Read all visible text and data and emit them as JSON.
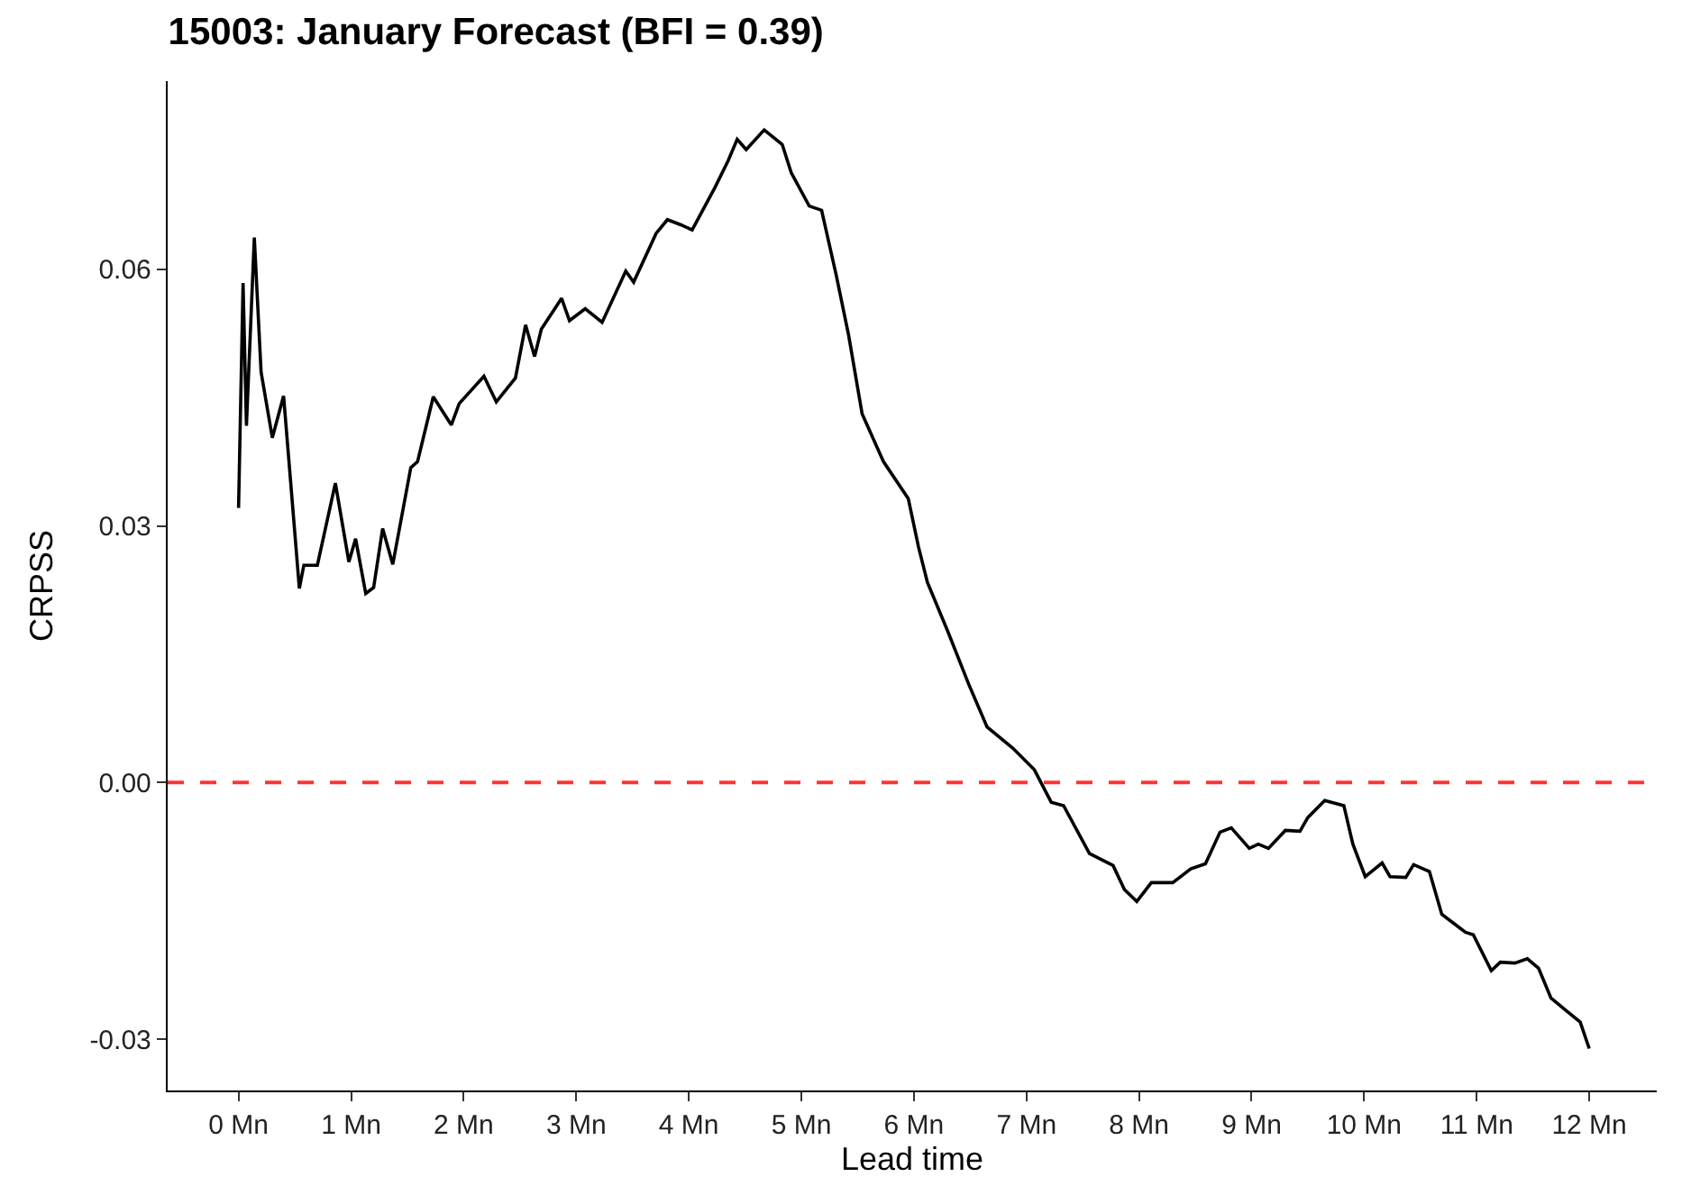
{
  "chart_data": {
    "type": "line",
    "title": "15003: January Forecast (BFI = 0.39)",
    "xlabel": "Lead time",
    "ylabel": "CRPSS",
    "x": [
      0.0,
      0.04,
      0.07,
      0.14,
      0.2,
      0.3,
      0.4,
      0.54,
      0.58,
      0.7,
      0.86,
      0.98,
      1.04,
      1.13,
      1.2,
      1.28,
      1.37,
      1.53,
      1.59,
      1.73,
      1.89,
      1.96,
      2.18,
      2.29,
      2.46,
      2.55,
      2.63,
      2.69,
      2.87,
      2.94,
      3.08,
      3.23,
      3.44,
      3.51,
      3.71,
      3.81,
      3.93,
      4.03,
      4.23,
      4.35,
      4.43,
      4.51,
      4.67,
      4.83,
      4.91,
      5.07,
      5.18,
      5.31,
      5.42,
      5.54,
      5.73,
      5.95,
      6.04,
      6.12,
      6.3,
      6.49,
      6.65,
      6.88,
      7.07,
      7.22,
      7.33,
      7.56,
      7.77,
      7.87,
      7.98,
      8.11,
      8.3,
      8.46,
      8.59,
      8.72,
      8.82,
      8.98,
      9.06,
      9.15,
      9.3,
      9.43,
      9.5,
      9.65,
      9.82,
      9.9,
      10.01,
      10.16,
      10.23,
      10.37,
      10.44,
      10.58,
      10.69,
      10.79,
      10.9,
      10.97,
      11.13,
      11.21,
      11.34,
      11.45,
      11.55,
      11.66,
      11.79,
      11.92,
      12.0
    ],
    "series": [
      {
        "color": "#000000",
        "values": [
          0.0321,
          0.0584,
          0.0417,
          0.0637,
          0.048,
          0.0403,
          0.0452,
          0.0227,
          0.0254,
          0.0254,
          0.035,
          0.0258,
          0.0285,
          0.0221,
          0.0228,
          0.0297,
          0.0255,
          0.0368,
          0.0375,
          0.0451,
          0.0418,
          0.0443,
          0.0475,
          0.0445,
          0.0473,
          0.0535,
          0.0498,
          0.053,
          0.0566,
          0.054,
          0.0554,
          0.0538,
          0.0598,
          0.0585,
          0.0642,
          0.0658,
          0.0652,
          0.0646,
          0.0695,
          0.0727,
          0.0752,
          0.074,
          0.0763,
          0.0746,
          0.0713,
          0.0674,
          0.0669,
          0.0593,
          0.0523,
          0.0431,
          0.0375,
          0.0332,
          0.0276,
          0.0234,
          0.0177,
          0.0114,
          0.0065,
          0.004,
          0.0015,
          -0.0023,
          -0.0027,
          -0.0083,
          -0.0097,
          -0.0125,
          -0.0139,
          -0.0117,
          -0.0117,
          -0.0101,
          -0.0095,
          -0.0058,
          -0.0053,
          -0.0077,
          -0.0072,
          -0.0077,
          -0.0056,
          -0.0057,
          -0.0041,
          -0.0021,
          -0.0027,
          -0.0072,
          -0.011,
          -0.0094,
          -0.011,
          -0.0111,
          -0.0096,
          -0.0104,
          -0.0154,
          -0.0164,
          -0.0175,
          -0.0178,
          -0.022,
          -0.021,
          -0.0211,
          -0.0206,
          -0.0217,
          -0.0252,
          -0.0266,
          -0.028,
          -0.0311
        ]
      }
    ],
    "xlim": [
      -0.63,
      12.6
    ],
    "ylim": [
      -0.036,
      0.082
    ],
    "xticks": [
      {
        "value": 0,
        "label": "0 Mn"
      },
      {
        "value": 1,
        "label": "1 Mn"
      },
      {
        "value": 2,
        "label": "2 Mn"
      },
      {
        "value": 3,
        "label": "3 Mn"
      },
      {
        "value": 4,
        "label": "4 Mn"
      },
      {
        "value": 5,
        "label": "5 Mn"
      },
      {
        "value": 6,
        "label": "6 Mn"
      },
      {
        "value": 7,
        "label": "7 Mn"
      },
      {
        "value": 8,
        "label": "8 Mn"
      },
      {
        "value": 9,
        "label": "9 Mn"
      },
      {
        "value": 10,
        "label": "10 Mn"
      },
      {
        "value": 11,
        "label": "11 Mn"
      },
      {
        "value": 12,
        "label": "12 Mn"
      }
    ],
    "yticks": [
      -0.03,
      {
        "value": 0,
        "label": "0.00"
      },
      0.03,
      0.06
    ],
    "ref_lines": [
      {
        "axis": "y",
        "value": 0,
        "color": "#ff3333",
        "line_style": "dashed"
      }
    ],
    "marker": "none",
    "line_style": "solid"
  }
}
